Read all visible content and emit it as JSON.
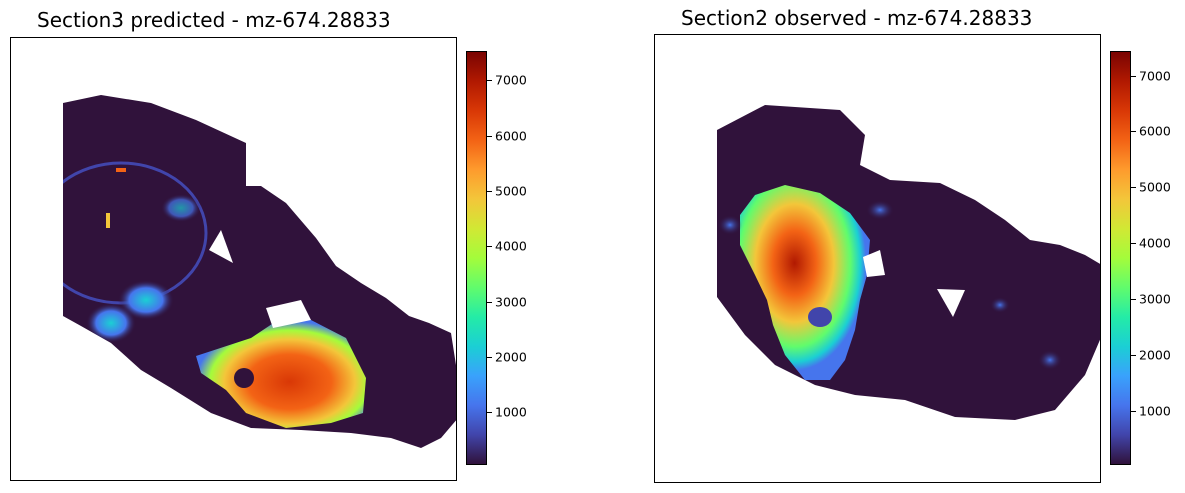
{
  "colormap_stops": [
    "#30123b",
    "#4145ab",
    "#4675ed",
    "#39a2fc",
    "#1bcfd4",
    "#24eca6",
    "#61fc6c",
    "#a4fc3b",
    "#d1e834",
    "#f3c63a",
    "#fe9b2d",
    "#f36315",
    "#d93806",
    "#b11901",
    "#7a0402"
  ],
  "chart_data": [
    {
      "type": "heatmap",
      "title": "Section3 predicted - mz-674.28833",
      "colorbar": {
        "min": 0,
        "max": 7550,
        "ticks": [
          "1000",
          "2000",
          "3000",
          "4000",
          "5000",
          "6000",
          "7000"
        ]
      },
      "grid": false,
      "axes_visible": false
    },
    {
      "type": "heatmap",
      "title": "Section2 observed - mz-674.28833",
      "colorbar": {
        "min": 0,
        "max": 7450,
        "ticks": [
          "1000",
          "2000",
          "3000",
          "4000",
          "5000",
          "6000",
          "7000"
        ]
      },
      "grid": false,
      "axes_visible": false
    }
  ]
}
